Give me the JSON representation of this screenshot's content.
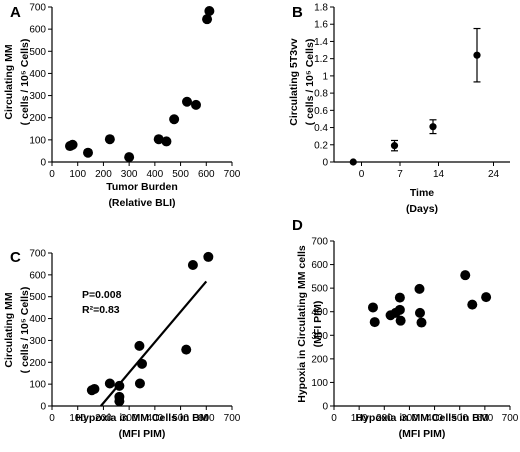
{
  "chart_data": [
    {
      "type": "scatter",
      "panel_letter": "A",
      "xlabel": "Tumor Burden",
      "xlabel2": "(Relative BLI)",
      "ylabel": "Circulating MM",
      "ylabel2": "( cells / 10⁵ Cells)",
      "xlim": [
        0,
        700
      ],
      "ylim": [
        0,
        700
      ],
      "xticks": [
        0,
        100,
        200,
        300,
        400,
        500,
        600,
        700
      ],
      "yticks": [
        0,
        100,
        200,
        300,
        400,
        500,
        600,
        700
      ],
      "points": [
        {
          "x": 70,
          "y": 72
        },
        {
          "x": 80,
          "y": 78
        },
        {
          "x": 140,
          "y": 42
        },
        {
          "x": 225,
          "y": 103
        },
        {
          "x": 300,
          "y": 22
        },
        {
          "x": 415,
          "y": 103
        },
        {
          "x": 445,
          "y": 93
        },
        {
          "x": 475,
          "y": 193
        },
        {
          "x": 525,
          "y": 272
        },
        {
          "x": 560,
          "y": 258
        },
        {
          "x": 603,
          "y": 645
        },
        {
          "x": 612,
          "y": 682
        }
      ]
    },
    {
      "type": "scatter",
      "panel_letter": "B",
      "xlabel": "Time",
      "xlabel2": "(Days)",
      "ylabel": "Circulating 5T3vv",
      "ylabel2": "( cells / 10⁵ Cells)",
      "xlim": [
        -5,
        27
      ],
      "ylim": [
        0,
        1.8
      ],
      "xticks": [
        0,
        7,
        14,
        24
      ],
      "yticks": [
        0,
        0.2,
        0.4,
        0.6,
        0.8,
        1,
        1.2,
        1.4,
        1.6,
        1.8
      ],
      "ytick_labels": [
        "0",
        "0.2",
        "0.4",
        "0.6",
        "0.8",
        "1",
        "1.2",
        "1.4",
        "1.6",
        "1.8"
      ],
      "points": [
        {
          "x": -1.5,
          "y": 0.0,
          "err": 0
        },
        {
          "x": 6,
          "y": 0.19,
          "err": 0.06
        },
        {
          "x": 13,
          "y": 0.41,
          "err": 0.08
        },
        {
          "x": 21,
          "y": 1.24,
          "err": 0.31
        }
      ]
    },
    {
      "type": "scatter",
      "panel_letter": "C",
      "xlabel": "Hypoxia in MM Cells in BM",
      "xlabel2": "(MFI PIM)",
      "ylabel": "Circulating MM",
      "ylabel2": "( cells / 10⁵ Cells)",
      "xlim": [
        0,
        700
      ],
      "ylim": [
        0,
        700
      ],
      "xticks": [
        0,
        100,
        200,
        300,
        400,
        500,
        600,
        700
      ],
      "yticks": [
        0,
        100,
        200,
        300,
        400,
        500,
        600,
        700
      ],
      "annotations": [
        "P=0.008",
        "R²=0.83"
      ],
      "trendline": {
        "x1": 190,
        "y1": 0,
        "x2": 600,
        "y2": 570
      },
      "points": [
        {
          "x": 155,
          "y": 72
        },
        {
          "x": 165,
          "y": 78
        },
        {
          "x": 225,
          "y": 103
        },
        {
          "x": 262,
          "y": 92
        },
        {
          "x": 262,
          "y": 42
        },
        {
          "x": 262,
          "y": 22
        },
        {
          "x": 340,
          "y": 275
        },
        {
          "x": 342,
          "y": 103
        },
        {
          "x": 350,
          "y": 193
        },
        {
          "x": 522,
          "y": 258
        },
        {
          "x": 548,
          "y": 645
        },
        {
          "x": 608,
          "y": 682
        }
      ]
    },
    {
      "type": "scatter",
      "panel_letter": "D",
      "xlabel": "Hypoxia in MM Cells in BM",
      "xlabel2": "(MFI PIM)",
      "ylabel": "Hypoxia in Circulating MM cells",
      "ylabel2": "(MFI PIM)",
      "xlim": [
        0,
        700
      ],
      "ylim": [
        0,
        700
      ],
      "xticks": [
        0,
        100,
        200,
        300,
        400,
        500,
        600,
        700
      ],
      "yticks": [
        0,
        100,
        200,
        300,
        400,
        500,
        600,
        700
      ],
      "points": [
        {
          "x": 155,
          "y": 418
        },
        {
          "x": 162,
          "y": 356
        },
        {
          "x": 225,
          "y": 385
        },
        {
          "x": 245,
          "y": 395
        },
        {
          "x": 262,
          "y": 460
        },
        {
          "x": 262,
          "y": 408
        },
        {
          "x": 265,
          "y": 362
        },
        {
          "x": 340,
          "y": 497
        },
        {
          "x": 342,
          "y": 395
        },
        {
          "x": 348,
          "y": 354
        },
        {
          "x": 522,
          "y": 555
        },
        {
          "x": 550,
          "y": 430
        },
        {
          "x": 605,
          "y": 462
        }
      ]
    }
  ]
}
